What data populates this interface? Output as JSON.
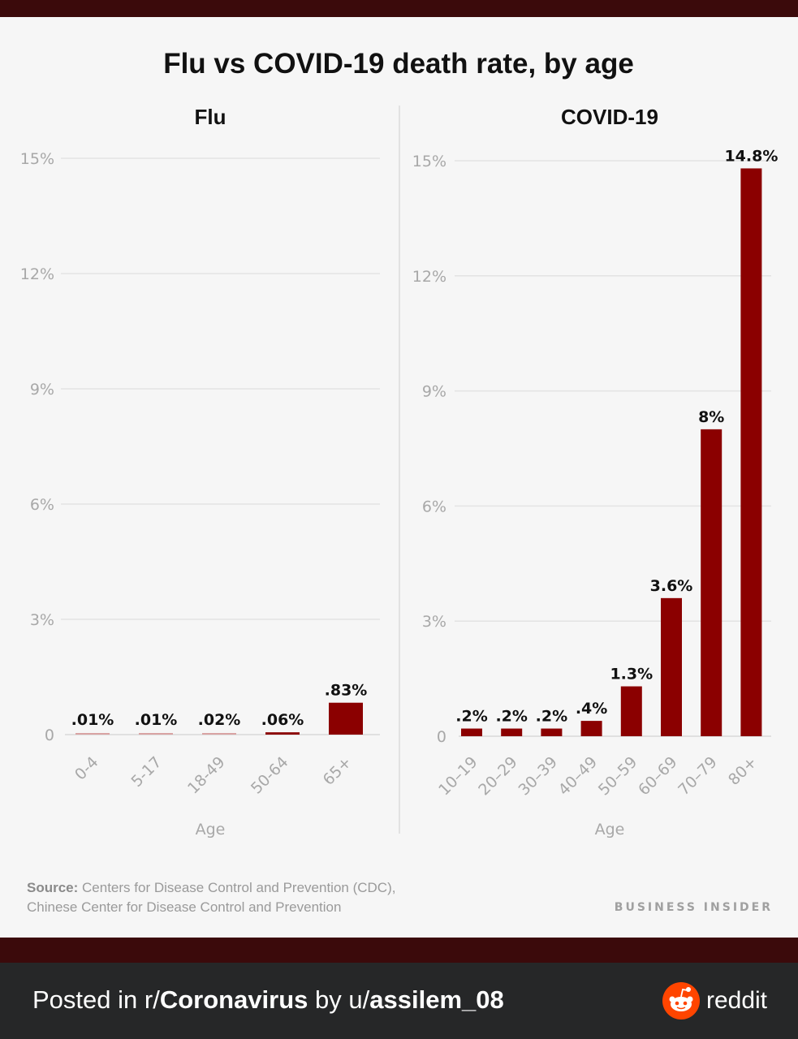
{
  "chart_data": [
    {
      "type": "bar",
      "title": "Flu vs COVID-19 death rate, by age",
      "panel_title": "Flu",
      "categories": [
        "0-4",
        "5-17",
        "18-49",
        "50-64",
        "65+"
      ],
      "values": [
        0.01,
        0.01,
        0.02,
        0.06,
        0.83
      ],
      "data_labels": [
        ".01%",
        ".01%",
        ".02%",
        ".06%",
        ".83%"
      ],
      "xlabel": "Age",
      "ylabel": "",
      "ylim": [
        0,
        15
      ],
      "yticks": [
        0,
        3,
        6,
        9,
        12,
        15
      ],
      "ytick_labels": [
        "0",
        "3%",
        "6%",
        "9%",
        "12%",
        "15%"
      ],
      "grid": true,
      "bar_color": "#8b0000"
    },
    {
      "type": "bar",
      "title": "Flu vs COVID-19 death rate, by age",
      "panel_title": "COVID-19",
      "categories": [
        "10–19",
        "20–29",
        "30–39",
        "40–49",
        "50–59",
        "60–69",
        "70–79",
        "80+"
      ],
      "values": [
        0.2,
        0.2,
        0.2,
        0.4,
        1.3,
        3.6,
        8,
        14.8
      ],
      "data_labels": [
        ".2%",
        ".2%",
        ".2%",
        ".4%",
        "1.3%",
        "3.6%",
        "8%",
        "14.8%"
      ],
      "xlabel": "Age",
      "ylabel": "",
      "ylim": [
        0,
        15
      ],
      "yticks": [
        0,
        3,
        6,
        9,
        12,
        15
      ],
      "ytick_labels": [
        "0",
        "3%",
        "6%",
        "9%",
        "12%",
        "15%"
      ],
      "grid": true,
      "bar_color": "#8b0000"
    }
  ],
  "header": {
    "title": "Flu vs COVID-19 death rate, by age"
  },
  "source": {
    "label": "Source:",
    "line1": " Centers for Disease Control and Prevention (CDC),",
    "line2": "Chinese Center for Disease Control and Prevention"
  },
  "brand": "BUSINESS INSIDER",
  "footer": {
    "posted_in": "Posted in r/",
    "subreddit": "Coronavirus",
    "by": " by u/",
    "user": "assilem_08",
    "reddit_label": "reddit"
  },
  "colors": {
    "band": "#3b0a0b",
    "bar": "#8b0000",
    "reddit_orange": "#ff4500"
  }
}
